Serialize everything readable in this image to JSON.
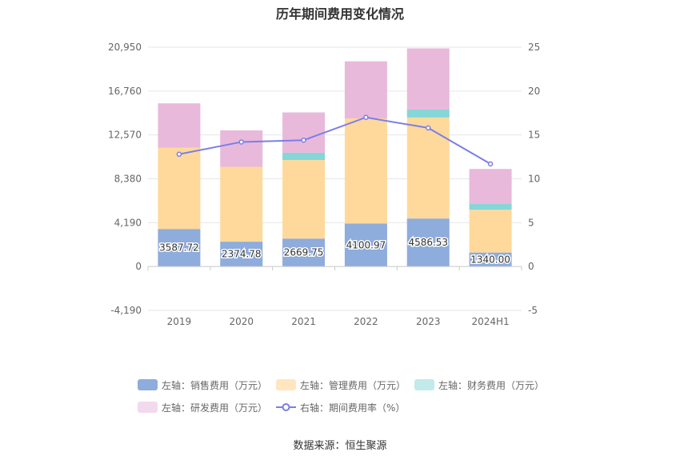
{
  "chart_data": {
    "type": "bar",
    "title": "历年期间费用变化情况",
    "categories": [
      "2019",
      "2020",
      "2021",
      "2022",
      "2023",
      "2024H1"
    ],
    "left_axis": {
      "ticks": [
        "20,950",
        "16,760",
        "12,570",
        "8,380",
        "4,190",
        "0",
        "-4,190"
      ],
      "min": -4190,
      "max": 20950
    },
    "right_axis": {
      "ticks": [
        "25",
        "20",
        "15",
        "10",
        "5",
        "0",
        "-5"
      ],
      "min": -5,
      "max": 25
    },
    "series": [
      {
        "name": "左轴：销售费用（万元）",
        "type": "bar",
        "color": "#8eacdc",
        "values": [
          3587.72,
          2374.78,
          2669.75,
          4100.97,
          4586.53,
          1340.0
        ],
        "labels": [
          "3587.72",
          "2374.78",
          "2669.75",
          "4100.97",
          "4586.53",
          "1340.00"
        ]
      },
      {
        "name": "左轴：管理费用（万元）",
        "type": "bar",
        "color": "#ffd99b",
        "values": [
          7750,
          7150,
          7500,
          10050,
          9650,
          4080
        ]
      },
      {
        "name": "左轴：财务费用（万元）",
        "type": "bar",
        "color": "#85d6d6",
        "values": [
          0,
          0,
          700,
          0,
          750,
          550
        ]
      },
      {
        "name": "左轴：研发费用（万元）",
        "type": "bar",
        "color": "#e8b9da",
        "values": [
          4250,
          3480,
          3850,
          5450,
          5850,
          3350
        ]
      },
      {
        "name": "右轴：期间费用率（%）",
        "type": "line",
        "color": "#7b7ee8",
        "values": [
          12.8,
          14.2,
          14.4,
          17.0,
          15.8,
          11.7
        ]
      }
    ],
    "legend_position": "bottom",
    "grid": true
  },
  "source": "数据来源：恒生聚源"
}
